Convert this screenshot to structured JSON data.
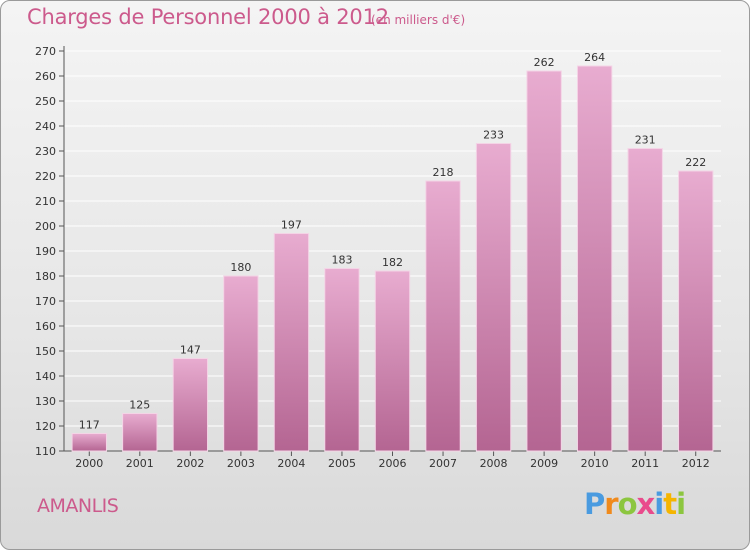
{
  "title": "Charges de Personnel 2000 à 2012",
  "subtitle": "(en milliers d'€)",
  "commune": "AMANLIS",
  "logo": "Proxiti",
  "colors": {
    "title": "#cc5a8c",
    "bar_top": "#e6a8cc",
    "bar_bottom": "#b86896",
    "grid": "#ffffff"
  },
  "chart_data": {
    "type": "bar",
    "title": "Charges de Personnel 2000 à 2012",
    "subtitle": "(en milliers d'€)",
    "categories": [
      "2000",
      "2001",
      "2002",
      "2003",
      "2004",
      "2005",
      "2006",
      "2007",
      "2008",
      "2009",
      "2010",
      "2011",
      "2012"
    ],
    "values": [
      117,
      125,
      147,
      180,
      197,
      183,
      182,
      218,
      233,
      262,
      264,
      231,
      222
    ],
    "ylim": [
      110,
      270
    ],
    "yticks": [
      110,
      120,
      130,
      140,
      150,
      160,
      170,
      180,
      190,
      200,
      210,
      220,
      230,
      240,
      250,
      260,
      270
    ],
    "grid": true,
    "legend": "none"
  }
}
